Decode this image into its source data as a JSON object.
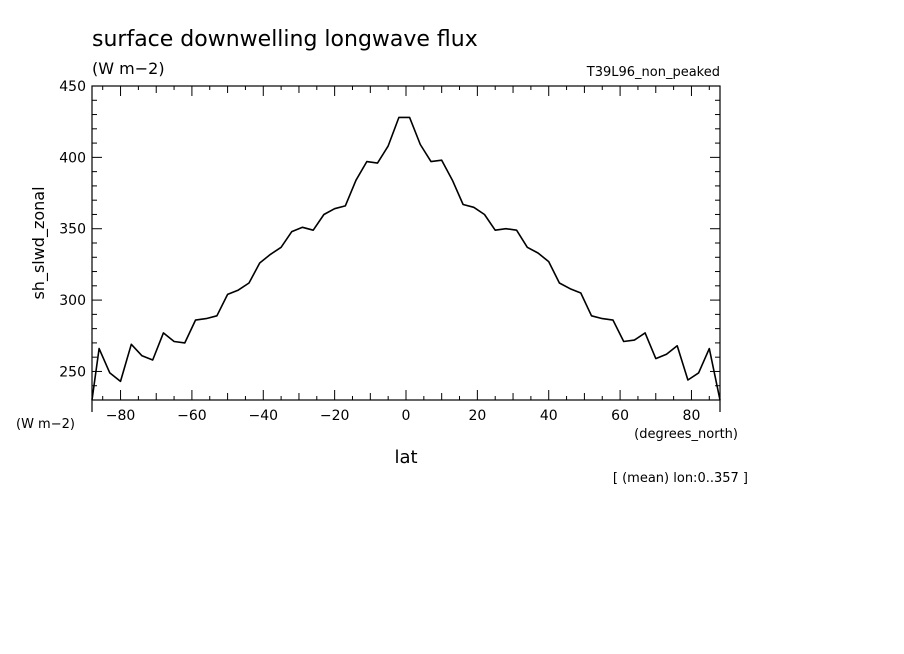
{
  "chart_data": {
    "type": "line",
    "title": "surface downwelling longwave flux",
    "subtitle": "(W m−2)",
    "experiment": "T39L96_non_peaked",
    "xlabel": "lat",
    "ylabel": "sh_slwd_zonal",
    "x_units": "(degrees_north)",
    "y_units": "(W m−2)",
    "footnote": "[ (mean) lon:0..357 ]",
    "xlim": [
      -88,
      88
    ],
    "ylim": [
      230,
      450
    ],
    "xticks": [
      -80,
      -60,
      -40,
      -20,
      0,
      20,
      40,
      60,
      80
    ],
    "xtick_labels": [
      "−80",
      "−60",
      "−40",
      "−20",
      "0",
      "20",
      "40",
      "60",
      "80"
    ],
    "yticks": [
      250,
      300,
      350,
      400,
      450
    ],
    "ytick_labels": [
      "250",
      "300",
      "350",
      "400",
      "450"
    ],
    "grid": false,
    "series": [
      {
        "color": "#000000",
        "x": [
          -88,
          -86,
          -83,
          -80,
          -77,
          -74,
          -71,
          -68,
          -65,
          -62,
          -59,
          -56,
          -53,
          -50,
          -47,
          -44,
          -41,
          -38,
          -35,
          -32,
          -29,
          -26,
          -23,
          -20,
          -17,
          -14,
          -11,
          -8,
          -5,
          -2,
          1,
          4,
          7,
          10,
          13,
          16,
          19,
          22,
          25,
          28,
          31,
          34,
          37,
          40,
          43,
          46,
          49,
          52,
          55,
          58,
          61,
          64,
          67,
          70,
          73,
          76,
          79,
          82,
          85,
          88
        ],
        "y": [
          230,
          266,
          249,
          243,
          269,
          261,
          258,
          277,
          271,
          270,
          286,
          287,
          289,
          304,
          307,
          312,
          326,
          332,
          337,
          348,
          351,
          349,
          360,
          364,
          366,
          384,
          397,
          396,
          408,
          428,
          428,
          409,
          397,
          398,
          384,
          367,
          365,
          360,
          349,
          350,
          349,
          337,
          333,
          327,
          312,
          308,
          305,
          289,
          287,
          286,
          271,
          272,
          277,
          259,
          262,
          268,
          244,
          249,
          266,
          230
        ]
      }
    ]
  }
}
